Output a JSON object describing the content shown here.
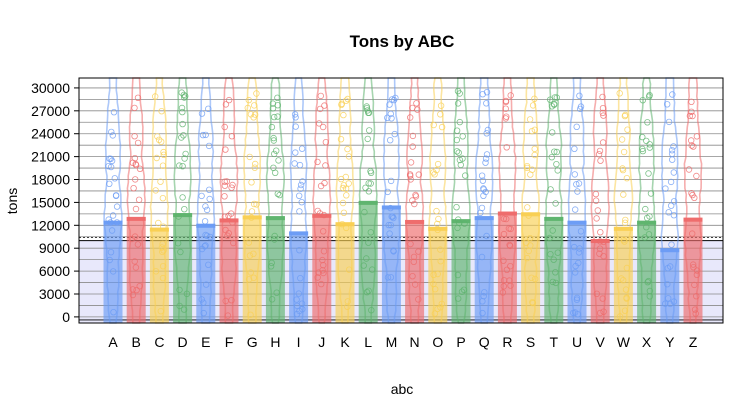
{
  "chart_data": {
    "type": "bar",
    "title": "Tons by ABC",
    "xlabel": "abc",
    "ylabel": "tons",
    "ylim": [
      -800,
      31300
    ],
    "yticks": [
      0,
      3000,
      6000,
      9000,
      12000,
      15000,
      18000,
      21000,
      24000,
      27000,
      30000
    ],
    "ytick_labels": [
      "0",
      "3000",
      "6000",
      "9000",
      "12000",
      "15000",
      "18000",
      "21000",
      "24000",
      "27000",
      "30000"
    ],
    "grid": true,
    "reference_band": {
      "value": 10000,
      "color": "#e8e8fb"
    },
    "palette": [
      "#6a9bf4",
      "#ee6a6a",
      "#f9cf52",
      "#5db36d"
    ],
    "categories": [
      "A",
      "B",
      "C",
      "D",
      "E",
      "F",
      "G",
      "H",
      "I",
      "J",
      "K",
      "L",
      "M",
      "N",
      "O",
      "P",
      "Q",
      "R",
      "S",
      "T",
      "U",
      "V",
      "W",
      "X",
      "Y",
      "Z"
    ],
    "values": [
      12600,
      13100,
      11700,
      13600,
      12200,
      12900,
      13300,
      13200,
      11200,
      13500,
      12400,
      15200,
      14600,
      12700,
      11800,
      12800,
      13200,
      13800,
      13700,
      13100,
      12600,
      10200,
      11800,
      12600,
      9000,
      13000
    ]
  }
}
